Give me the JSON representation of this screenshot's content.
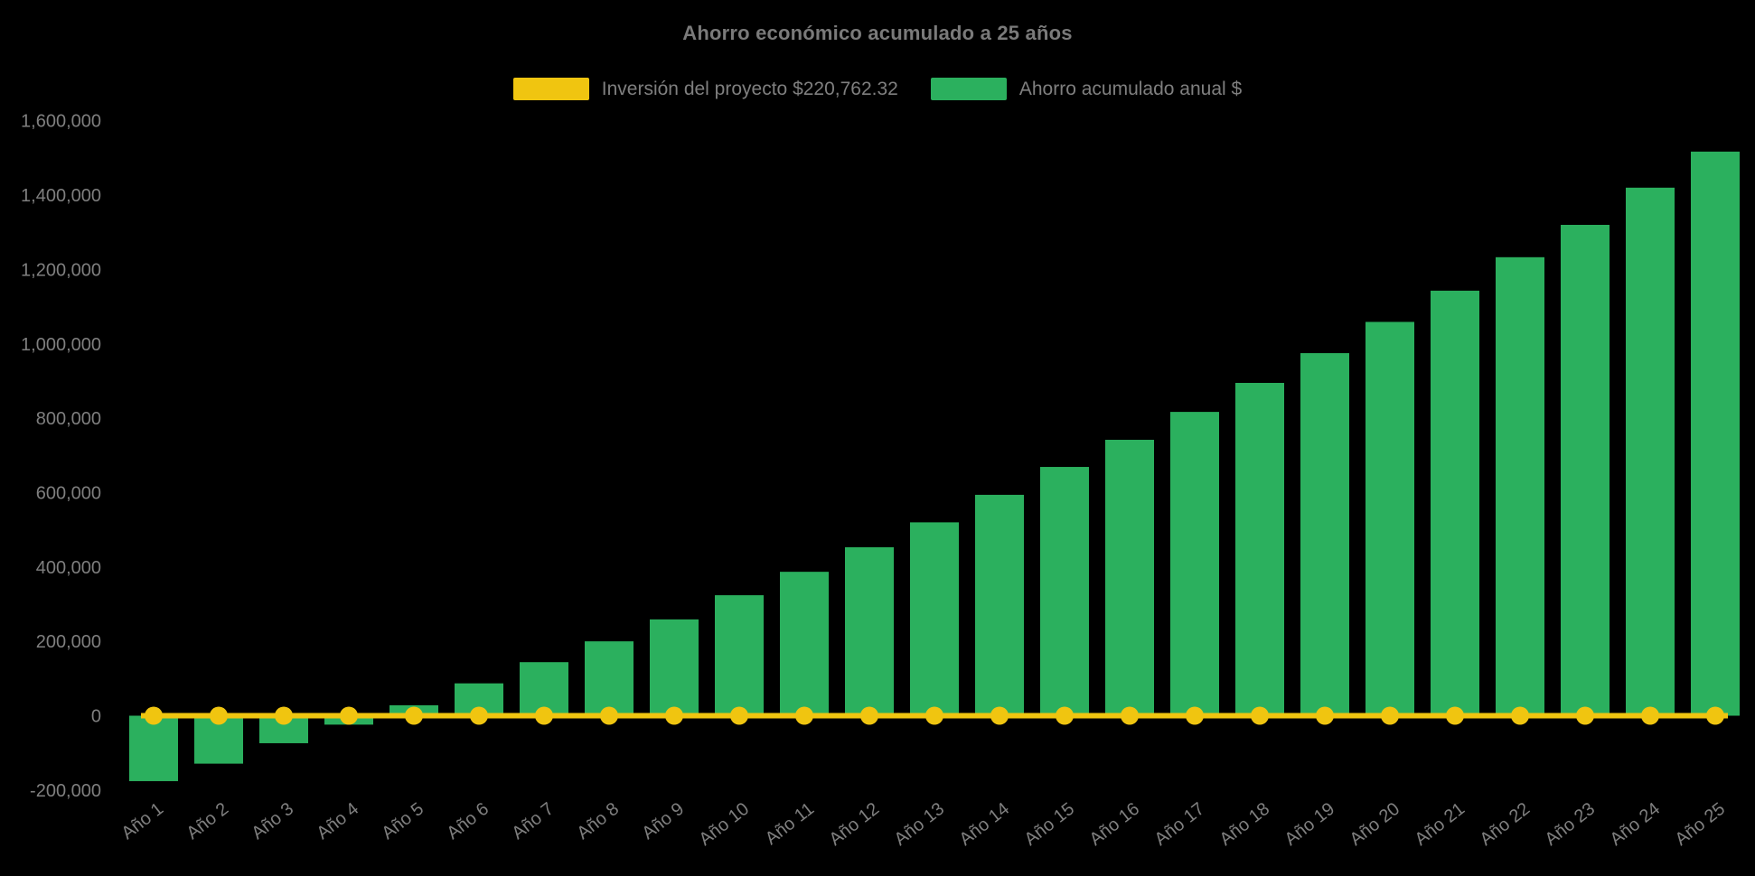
{
  "title": "Ahorro económico acumulado a 25 años",
  "colors": {
    "background": "#000000",
    "text": "#7f7f7f",
    "title_text": "#7a7a7a",
    "bar_green": "#2bb05e",
    "line_yellow": "#f0c510"
  },
  "chart_data": {
    "type": "bar",
    "title": "Ahorro económico acumulado a 25 años",
    "xlabel": "",
    "ylabel": "",
    "grid": false,
    "legend_position": "top",
    "background": "#000000",
    "categories": [
      "Año 1",
      "Año 2",
      "Año 3",
      "Año 4",
      "Año 5",
      "Año 6",
      "Año 7",
      "Año 8",
      "Año 9",
      "Año 10",
      "Año 11",
      "Año 12",
      "Año 13",
      "Año 14",
      "Año 15",
      "Año 16",
      "Año 17",
      "Año 18",
      "Año 19",
      "Año 20",
      "Año 21",
      "Año 22",
      "Año 23",
      "Año 24",
      "Año 25"
    ],
    "y_ticks": [
      -200000,
      0,
      200000,
      400000,
      600000,
      800000,
      1000000,
      1200000,
      1400000,
      1600000
    ],
    "ylim": [
      -200000,
      1600000
    ],
    "series": [
      {
        "name": "Inversión del proyecto $220,762.32",
        "type": "line",
        "color": "#f0c510",
        "marker": "circle",
        "investment_value": 220762.32,
        "plotted_constant": 0
      },
      {
        "name": "Ahorro acumulado anual $",
        "type": "bar",
        "color": "#2bb05e",
        "values": [
          -176000,
          -129000,
          -74000,
          -24000,
          28000,
          87000,
          144000,
          200000,
          259000,
          324000,
          387000,
          453000,
          520000,
          594000,
          669000,
          742000,
          817000,
          895000,
          975000,
          1059000,
          1143000,
          1233000,
          1320000,
          1420000,
          1517000
        ]
      }
    ]
  }
}
